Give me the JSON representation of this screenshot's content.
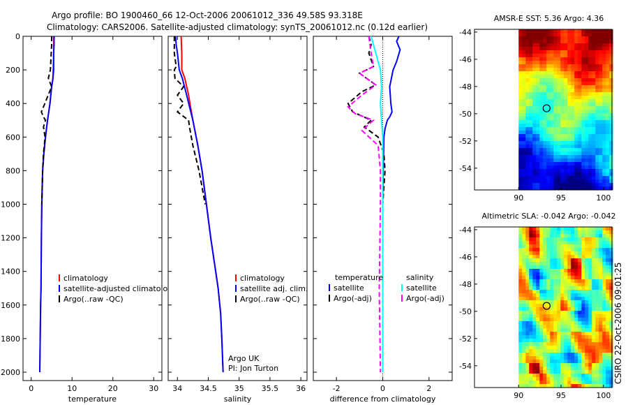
{
  "header": {
    "line1": "Argo profile: BO 1900460_66 12-Oct-2006 20061012_336 49.58S 93.318E",
    "line2": "Climatology: CARS2006. Satellite-adjusted climatology: synTS_20061012.nc (0.12d earlier)"
  },
  "side_stamp": "CSIRO 22-Oct-2006 09:01:25",
  "colors": {
    "clim": "#ff0000",
    "sat": "#0000ff",
    "argo": "#000000",
    "sat2": "#00ffff",
    "argo2": "#ff00ff"
  },
  "chart_data": [
    {
      "id": "temperature",
      "type": "line",
      "xlabel": "temperature",
      "ylabel": "",
      "xlim": [
        -2,
        32
      ],
      "ylim": [
        2050,
        0
      ],
      "xticks": [
        0,
        10,
        20,
        30
      ],
      "yticks": [
        0,
        200,
        400,
        600,
        800,
        1000,
        1200,
        1400,
        1600,
        1800,
        2000
      ],
      "legend": [
        "climatology",
        "satellite-adjusted climatology",
        "Argo(..raw -QC)"
      ],
      "series": [
        {
          "name": "climatology",
          "style": "clim",
          "points": [
            [
              5.5,
              0
            ],
            [
              5.5,
              50
            ],
            [
              5.5,
              100
            ],
            [
              5.4,
              200
            ],
            [
              5.3,
              250
            ],
            [
              5.0,
              300
            ],
            [
              4.6,
              400
            ],
            [
              4.0,
              500
            ],
            [
              3.5,
              600
            ],
            [
              3.1,
              700
            ],
            [
              2.8,
              800
            ],
            [
              2.6,
              1000
            ],
            [
              2.5,
              1200
            ],
            [
              2.4,
              1500
            ],
            [
              2.3,
              1600
            ],
            [
              2.1,
              2000
            ]
          ]
        },
        {
          "name": "satellite-adjusted climatology",
          "style": "sat",
          "points": [
            [
              5.6,
              0
            ],
            [
              5.6,
              50
            ],
            [
              5.5,
              100
            ],
            [
              5.5,
              200
            ],
            [
              5.3,
              260
            ],
            [
              5.0,
              300
            ],
            [
              4.6,
              400
            ],
            [
              4.0,
              500
            ],
            [
              3.5,
              600
            ],
            [
              3.1,
              700
            ],
            [
              2.8,
              800
            ],
            [
              2.6,
              1000
            ],
            [
              2.5,
              1200
            ],
            [
              2.4,
              1500
            ],
            [
              2.3,
              1600
            ],
            [
              2.1,
              2000
            ]
          ]
        },
        {
          "name": "Argo(..raw -QC)",
          "style": "argo",
          "points": [
            [
              5.0,
              0
            ],
            [
              5.0,
              50
            ],
            [
              4.9,
              100
            ],
            [
              4.7,
              200
            ],
            [
              4.2,
              250
            ],
            [
              5.0,
              300
            ],
            [
              3.0,
              420
            ],
            [
              2.5,
              450
            ],
            [
              3.0,
              480
            ],
            [
              3.5,
              500
            ],
            [
              3.0,
              540
            ],
            [
              3.4,
              600
            ],
            [
              3.0,
              700
            ],
            [
              2.8,
              800
            ],
            [
              2.6,
              1000
            ]
          ]
        }
      ]
    },
    {
      "id": "salinity",
      "type": "line",
      "xlabel": "salinity",
      "ylabel": "",
      "xlim": [
        33.85,
        36.1
      ],
      "xticks": [
        34,
        34.5,
        35,
        35.5,
        36
      ],
      "xticklabels": [
        "34",
        "34.5",
        "35",
        "35.5",
        "36"
      ],
      "legend": [
        "climatology",
        "satellite adj. clim.",
        "Argo(..raw -QC)"
      ],
      "annotations": [
        "Argo UK",
        "PI: Jon Turton"
      ],
      "series": [
        {
          "name": "climatology",
          "style": "clim",
          "points": [
            [
              34.06,
              0
            ],
            [
              34.07,
              100
            ],
            [
              34.07,
              200
            ],
            [
              34.12,
              250
            ],
            [
              34.18,
              350
            ],
            [
              34.25,
              500
            ],
            [
              34.33,
              650
            ],
            [
              34.4,
              800
            ],
            [
              34.47,
              1000
            ],
            [
              34.54,
              1200
            ],
            [
              34.62,
              1400
            ],
            [
              34.66,
              1500
            ],
            [
              34.7,
              1650
            ],
            [
              34.72,
              1800
            ],
            [
              34.74,
              2000
            ]
          ]
        },
        {
          "name": "satellite adj. clim.",
          "style": "sat",
          "points": [
            [
              33.97,
              0
            ],
            [
              33.98,
              50
            ],
            [
              34.0,
              100
            ],
            [
              34.03,
              200
            ],
            [
              34.08,
              250
            ],
            [
              34.15,
              350
            ],
            [
              34.25,
              500
            ],
            [
              34.33,
              650
            ],
            [
              34.4,
              800
            ],
            [
              34.47,
              1000
            ],
            [
              34.54,
              1200
            ],
            [
              34.62,
              1400
            ],
            [
              34.66,
              1500
            ],
            [
              34.7,
              1650
            ],
            [
              34.72,
              1800
            ],
            [
              34.74,
              2000
            ]
          ]
        },
        {
          "name": "Argo(..raw -QC)",
          "style": "argo",
          "points": [
            [
              33.95,
              0
            ],
            [
              33.95,
              100
            ],
            [
              33.98,
              180
            ],
            [
              33.95,
              200
            ],
            [
              33.96,
              250
            ],
            [
              34.1,
              300
            ],
            [
              34.0,
              350
            ],
            [
              34.1,
              400
            ],
            [
              34.0,
              450
            ],
            [
              34.18,
              500
            ],
            [
              34.2,
              550
            ],
            [
              34.25,
              650
            ],
            [
              34.35,
              800
            ],
            [
              34.45,
              1000
            ]
          ]
        }
      ]
    },
    {
      "id": "difference",
      "type": "line",
      "xlabel": "difference from climatology",
      "xlim": [
        -3,
        3
      ],
      "xticks": [
        -2,
        0,
        2
      ],
      "legend_titles": [
        "temperature",
        "salinity"
      ],
      "legend": [
        "satellite",
        "Argo(-adj)",
        "satellite",
        "Argo(-adj)"
      ],
      "series": [
        {
          "name": "temperature satellite",
          "style": "sat",
          "points": [
            [
              0.7,
              0
            ],
            [
              0.6,
              30
            ],
            [
              0.75,
              80
            ],
            [
              0.6,
              150
            ],
            [
              0.45,
              200
            ],
            [
              0.3,
              300
            ],
            [
              0.35,
              400
            ],
            [
              0.4,
              450
            ],
            [
              0.3,
              480
            ],
            [
              0.2,
              500
            ],
            [
              0.1,
              550
            ],
            [
              0.05,
              600
            ],
            [
              0.02,
              800
            ],
            [
              0.0,
              1000
            ],
            [
              0.0,
              2000
            ]
          ]
        },
        {
          "name": "temperature Argo(-adj)",
          "style": "argo",
          "points": [
            [
              -0.6,
              0
            ],
            [
              -0.5,
              50
            ],
            [
              -0.6,
              100
            ],
            [
              -0.4,
              180
            ],
            [
              -1.0,
              220
            ],
            [
              -0.3,
              290
            ],
            [
              -0.9,
              330
            ],
            [
              -1.5,
              400
            ],
            [
              -1.3,
              450
            ],
            [
              -0.5,
              500
            ],
            [
              -0.8,
              540
            ],
            [
              -0.2,
              600
            ],
            [
              0.05,
              700
            ],
            [
              0.1,
              800
            ],
            [
              0.0,
              1000
            ]
          ]
        },
        {
          "name": "salinity satellite",
          "style": "sat2",
          "points": [
            [
              -0.5,
              0
            ],
            [
              -0.3,
              100
            ],
            [
              -0.1,
              200
            ],
            [
              -0.05,
              300
            ],
            [
              -0.1,
              400
            ],
            [
              -0.05,
              500
            ],
            [
              0.0,
              600
            ],
            [
              0.0,
              800
            ],
            [
              0.0,
              1000
            ],
            [
              0.0,
              2000
            ]
          ]
        },
        {
          "name": "salinity Argo(-adj)",
          "style": "argo2",
          "points": [
            [
              -0.6,
              0
            ],
            [
              -0.5,
              100
            ],
            [
              -0.4,
              180
            ],
            [
              -1.0,
              220
            ],
            [
              -0.3,
              290
            ],
            [
              -0.9,
              350
            ],
            [
              -1.5,
              420
            ],
            [
              -1.2,
              460
            ],
            [
              -0.4,
              500
            ],
            [
              -0.9,
              560
            ],
            [
              -0.2,
              650
            ],
            [
              -0.1,
              800
            ],
            [
              -0.1,
              1000
            ],
            [
              -0.15,
              1500
            ],
            [
              -0.1,
              2000
            ]
          ]
        }
      ]
    },
    {
      "id": "sst_map",
      "type": "heatmap",
      "title": "AMSR-E SST: 5.36 Argo: 4.36",
      "xlim": [
        84.8,
        101
      ],
      "ylim": [
        -55.6,
        -43.8
      ],
      "xticks": [
        90,
        95,
        100
      ],
      "yticks": [
        -44,
        -46,
        -48,
        -50,
        -52,
        -54
      ],
      "marker": [
        93.3,
        -49.6
      ]
    },
    {
      "id": "sla_map",
      "type": "heatmap",
      "title": "Altimetric SLA: -0.042 Argo: -0.042",
      "xlim": [
        84.8,
        101
      ],
      "ylim": [
        -55.6,
        -43.8
      ],
      "xticks": [
        90,
        95,
        100
      ],
      "yticks": [
        -44,
        -46,
        -48,
        -50,
        -52,
        -54
      ],
      "marker": [
        93.3,
        -49.6
      ]
    }
  ]
}
